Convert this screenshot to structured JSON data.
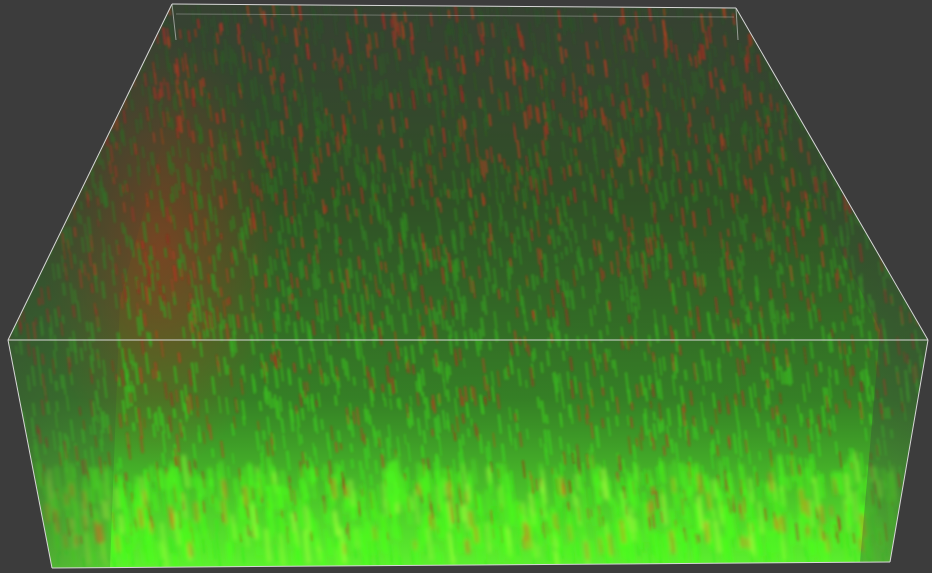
{
  "viewer": {
    "background_color": "#3c3c3c",
    "bounding_box_color": "#d8d8d8"
  },
  "volume": {
    "description_channels": [
      {
        "name": "green",
        "color": "#3ddc2a"
      },
      {
        "name": "red",
        "color": "#d8261a"
      }
    ],
    "base_glow_color": "#4cff1c",
    "deep_color": "#24551a"
  }
}
